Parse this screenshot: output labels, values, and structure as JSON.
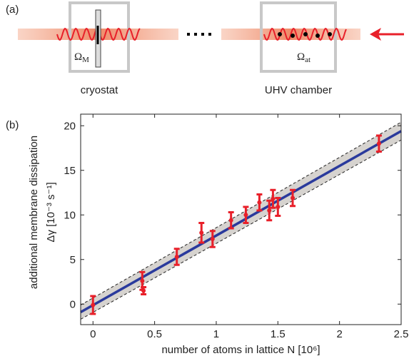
{
  "schematic": {
    "panel_label": "(a)",
    "left_caption": "cryostat",
    "right_caption": "UHV chamber",
    "left_symbol": {
      "symbol": "Ω",
      "subscript": "M"
    },
    "right_symbol": {
      "symbol": "Ω",
      "subscript": "at"
    }
  },
  "chart_data": {
    "type": "scatter",
    "panel_label": "(b)",
    "x_label": "number of atoms in lattice N [10⁶]",
    "y_label": [
      "additional membrane dissipation",
      "Δγ [10⁻³ s⁻¹]"
    ],
    "x": [
      0.0,
      0.4,
      0.41,
      0.68,
      0.88,
      0.97,
      1.12,
      1.24,
      1.35,
      1.43,
      1.46,
      1.5,
      1.62,
      2.32
    ],
    "values": [
      -0.1,
      2.6,
      1.5,
      5.3,
      8.0,
      7.3,
      9.4,
      10.0,
      11.4,
      10.5,
      11.8,
      10.9,
      11.9,
      18.0
    ],
    "errors": [
      1.0,
      1.0,
      0.4,
      0.9,
      1.1,
      0.9,
      0.9,
      0.9,
      0.9,
      1.1,
      1.0,
      1.0,
      0.9,
      0.9
    ],
    "color": "#e8202a",
    "fit": {
      "x": [
        -0.1,
        2.5
      ],
      "values": [
        -0.9,
        19.4
      ],
      "upper": [
        -0.1,
        20.4
      ],
      "lower": [
        -1.7,
        18.4
      ],
      "color": "#2a3a9c",
      "band_color": "#d6d3cf"
    },
    "xlim": [
      -0.1,
      2.5
    ],
    "ylim": [
      -2.3,
      21.3
    ],
    "xticks": [
      0,
      0.5,
      1,
      1.5,
      2,
      2.5
    ],
    "yticks": [
      0,
      5,
      10,
      15,
      20
    ],
    "grid": false
  }
}
